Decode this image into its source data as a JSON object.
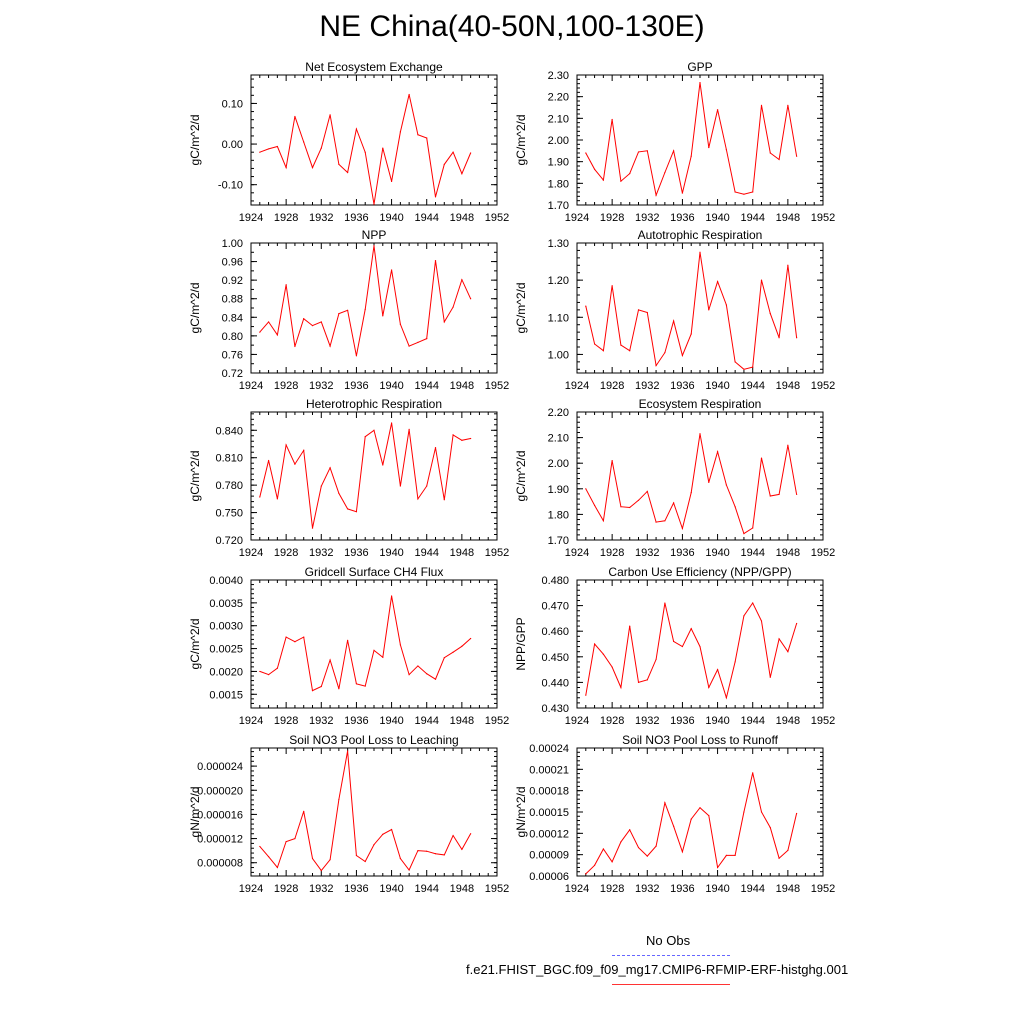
{
  "title": "NE China(40-50N,100-130E)",
  "legend": {
    "obs_label": "No Obs",
    "obs_color": "#6666ff",
    "case_label": "f.e21.FHIST_BGC.f09_f09_mg17.CMIP6-RFMIP-ERF-histghg.001",
    "case_color": "#ff0000"
  },
  "chart_data": [
    {
      "type": "line",
      "title": "Net Ecosystem Exchange",
      "ylabel": "gC/m^2/d",
      "xlim": [
        1924,
        1952
      ],
      "ylim": [
        -0.15,
        0.17
      ],
      "yticks": [
        -0.1,
        0.0,
        0.1
      ],
      "ytick_labels": [
        "-0.10",
        "0.00",
        "0.10"
      ],
      "yminor_step": 0.02,
      "x": [
        1925,
        1926,
        1927,
        1928,
        1929,
        1930,
        1931,
        1932,
        1933,
        1934,
        1935,
        1936,
        1937,
        1938,
        1939,
        1940,
        1941,
        1942,
        1943,
        1944,
        1945,
        1946,
        1947,
        1948,
        1949
      ],
      "values": [
        -0.02,
        -0.012,
        -0.006,
        -0.058,
        0.068,
        0.005,
        -0.058,
        -0.01,
        0.072,
        -0.05,
        -0.07,
        0.037,
        -0.02,
        -0.148,
        -0.01,
        -0.092,
        0.03,
        0.122,
        0.023,
        0.015,
        -0.13,
        -0.05,
        -0.02,
        -0.073,
        -0.022
      ]
    },
    {
      "type": "line",
      "title": "GPP",
      "ylabel": "gC/m^2/d",
      "xlim": [
        1924,
        1952
      ],
      "ylim": [
        1.7,
        2.3
      ],
      "yticks": [
        1.7,
        1.8,
        1.9,
        2.0,
        2.1,
        2.2,
        2.3
      ],
      "ytick_labels": [
        "1.70",
        "1.80",
        "1.90",
        "2.00",
        "2.10",
        "2.20",
        "2.30"
      ],
      "yminor_step": 0.02,
      "x": [
        1925,
        1926,
        1927,
        1928,
        1929,
        1930,
        1931,
        1932,
        1933,
        1934,
        1935,
        1936,
        1937,
        1938,
        1939,
        1940,
        1941,
        1942,
        1943,
        1944,
        1945,
        1946,
        1947,
        1948,
        1949
      ],
      "values": [
        1.94,
        1.865,
        1.815,
        2.095,
        1.81,
        1.845,
        1.945,
        1.95,
        1.745,
        1.85,
        1.95,
        1.755,
        1.925,
        2.265,
        1.965,
        2.14,
        1.955,
        1.76,
        1.75,
        1.76,
        2.16,
        1.94,
        1.91,
        2.16,
        1.925
      ]
    },
    {
      "type": "line",
      "title": "NPP",
      "ylabel": "gC/m^2/d",
      "xlim": [
        1924,
        1952
      ],
      "ylim": [
        0.72,
        1.0
      ],
      "yticks": [
        0.72,
        0.76,
        0.8,
        0.84,
        0.88,
        0.92,
        0.96,
        1.0
      ],
      "ytick_labels": [
        "0.72",
        "0.76",
        "0.80",
        "0.84",
        "0.88",
        "0.92",
        "0.96",
        "1.00"
      ],
      "yminor_step": 0.02,
      "x": [
        1925,
        1926,
        1927,
        1928,
        1929,
        1930,
        1931,
        1932,
        1933,
        1934,
        1935,
        1936,
        1937,
        1938,
        1939,
        1940,
        1941,
        1942,
        1943,
        1944,
        1945,
        1946,
        1947,
        1948,
        1949
      ],
      "values": [
        0.808,
        0.83,
        0.802,
        0.91,
        0.777,
        0.837,
        0.822,
        0.83,
        0.778,
        0.848,
        0.855,
        0.757,
        0.857,
        0.994,
        0.843,
        0.942,
        0.825,
        0.778,
        0.786,
        0.794,
        0.962,
        0.83,
        0.862,
        0.921,
        0.88
      ]
    },
    {
      "type": "line",
      "title": "Autotrophic Respiration",
      "ylabel": "gC/m^2/d",
      "xlim": [
        1924,
        1952
      ],
      "ylim": [
        0.95,
        1.3
      ],
      "yticks": [
        1.0,
        1.1,
        1.2,
        1.3
      ],
      "ytick_labels": [
        "1.00",
        "1.10",
        "1.20",
        "1.30"
      ],
      "yminor_step": 0.02,
      "x": [
        1925,
        1926,
        1927,
        1928,
        1929,
        1930,
        1931,
        1932,
        1933,
        1934,
        1935,
        1936,
        1937,
        1938,
        1939,
        1940,
        1941,
        1942,
        1943,
        1944,
        1945,
        1946,
        1947,
        1948,
        1949
      ],
      "values": [
        1.13,
        1.028,
        1.01,
        1.185,
        1.025,
        1.01,
        1.12,
        1.113,
        0.97,
        1.005,
        1.09,
        0.997,
        1.055,
        1.275,
        1.12,
        1.196,
        1.133,
        0.98,
        0.96,
        0.966,
        1.2,
        1.11,
        1.045,
        1.24,
        1.045
      ]
    },
    {
      "type": "line",
      "title": "Heterotrophic Respiration",
      "ylabel": "gC/m^2/d",
      "xlim": [
        1924,
        1952
      ],
      "ylim": [
        0.72,
        0.86
      ],
      "yticks": [
        0.72,
        0.75,
        0.78,
        0.81,
        0.84
      ],
      "ytick_labels": [
        "0.720",
        "0.750",
        "0.780",
        "0.810",
        "0.840"
      ],
      "yminor_step": 0.006,
      "x": [
        1925,
        1926,
        1927,
        1928,
        1929,
        1930,
        1931,
        1932,
        1933,
        1934,
        1935,
        1936,
        1937,
        1938,
        1939,
        1940,
        1941,
        1942,
        1943,
        1944,
        1945,
        1946,
        1947,
        1948,
        1949
      ],
      "values": [
        0.767,
        0.807,
        0.765,
        0.824,
        0.803,
        0.818,
        0.733,
        0.779,
        0.799,
        0.771,
        0.754,
        0.751,
        0.833,
        0.84,
        0.802,
        0.848,
        0.779,
        0.841,
        0.765,
        0.779,
        0.821,
        0.764,
        0.835,
        0.829,
        0.831
      ]
    },
    {
      "type": "line",
      "title": "Ecosystem Respiration",
      "ylabel": "gC/m^2/d",
      "xlim": [
        1924,
        1952
      ],
      "ylim": [
        1.7,
        2.2
      ],
      "yticks": [
        1.7,
        1.8,
        1.9,
        2.0,
        2.1,
        2.2
      ],
      "ytick_labels": [
        "1.70",
        "1.80",
        "1.90",
        "2.00",
        "2.10",
        "2.20"
      ],
      "yminor_step": 0.02,
      "x": [
        1925,
        1926,
        1927,
        1928,
        1929,
        1930,
        1931,
        1932,
        1933,
        1934,
        1935,
        1936,
        1937,
        1938,
        1939,
        1940,
        1941,
        1942,
        1943,
        1944,
        1945,
        1946,
        1947,
        1948,
        1949
      ],
      "values": [
        1.9,
        1.835,
        1.775,
        2.01,
        1.83,
        1.827,
        1.855,
        1.89,
        1.77,
        1.775,
        1.845,
        1.745,
        1.885,
        2.115,
        1.925,
        2.045,
        1.915,
        1.83,
        1.725,
        1.747,
        2.02,
        1.872,
        1.878,
        2.07,
        1.878
      ]
    },
    {
      "type": "line",
      "title": "Gridcell Surface CH4 Flux",
      "ylabel": "gC/m^2/d",
      "xlim": [
        1924,
        1952
      ],
      "ylim": [
        0.0012,
        0.004
      ],
      "yticks": [
        0.0015,
        0.002,
        0.0025,
        0.003,
        0.0035,
        0.004
      ],
      "ytick_labels": [
        "0.0015",
        "0.0020",
        "0.0025",
        "0.0030",
        "0.0035",
        "0.0040"
      ],
      "yminor_step": 0.0001,
      "x": [
        1925,
        1926,
        1927,
        1928,
        1929,
        1930,
        1931,
        1932,
        1933,
        1934,
        1935,
        1936,
        1937,
        1938,
        1939,
        1940,
        1941,
        1942,
        1943,
        1944,
        1945,
        1946,
        1947,
        1948,
        1949
      ],
      "values": [
        0.002,
        0.00193,
        0.00207,
        0.00275,
        0.00265,
        0.00275,
        0.00158,
        0.00167,
        0.00225,
        0.00162,
        0.00268,
        0.00173,
        0.00168,
        0.00246,
        0.00231,
        0.00365,
        0.00258,
        0.00193,
        0.00212,
        0.00195,
        0.00183,
        0.0023,
        0.00242,
        0.00255,
        0.00272
      ]
    },
    {
      "type": "line",
      "title": "Carbon Use Efficiency (NPP/GPP)",
      "ylabel": "NPP/GPP",
      "xlim": [
        1924,
        1952
      ],
      "ylim": [
        0.43,
        0.48
      ],
      "yticks": [
        0.43,
        0.44,
        0.45,
        0.46,
        0.47,
        0.48
      ],
      "ytick_labels": [
        "0.430",
        "0.440",
        "0.450",
        "0.460",
        "0.470",
        "0.480"
      ],
      "yminor_step": 0.002,
      "x": [
        1925,
        1926,
        1927,
        1928,
        1929,
        1930,
        1931,
        1932,
        1933,
        1934,
        1935,
        1936,
        1937,
        1938,
        1939,
        1940,
        1941,
        1942,
        1943,
        1944,
        1945,
        1946,
        1947,
        1948,
        1949
      ],
      "values": [
        0.435,
        0.455,
        0.451,
        0.446,
        0.438,
        0.462,
        0.44,
        0.441,
        0.449,
        0.471,
        0.456,
        0.454,
        0.461,
        0.454,
        0.438,
        0.445,
        0.434,
        0.448,
        0.466,
        0.471,
        0.464,
        0.442,
        0.457,
        0.452,
        0.463
      ]
    },
    {
      "type": "line",
      "title": "Soil NO3 Pool Loss to Leaching",
      "ylabel": "gN/m^2/d",
      "xlim": [
        1924,
        1952
      ],
      "ylim": [
        5.8e-06,
        2.7e-05
      ],
      "yticks": [
        8e-06,
        1.2e-05,
        1.6e-05,
        2e-05,
        2.4e-05
      ],
      "ytick_labels": [
        "0.000008",
        "0.000012",
        "0.000016",
        "0.000020",
        "0.000024"
      ],
      "yminor_step": 8e-07,
      "x": [
        1925,
        1926,
        1927,
        1928,
        1929,
        1930,
        1931,
        1932,
        1933,
        1934,
        1935,
        1936,
        1937,
        1938,
        1939,
        1940,
        1941,
        1942,
        1943,
        1944,
        1945,
        1946,
        1947,
        1948,
        1949
      ],
      "values": [
        1.07e-05,
        9e-06,
        7.2e-06,
        1.15e-05,
        1.2e-05,
        1.65e-05,
        8.7e-06,
        6.7e-06,
        8.5e-06,
        1.85e-05,
        2.65e-05,
        9.2e-06,
        8.2e-06,
        1.1e-05,
        1.27e-05,
        1.35e-05,
        8.7e-06,
        6.8e-06,
        1e-05,
        9.9e-06,
        9.5e-06,
        9.3e-06,
        1.25e-05,
        1.02e-05,
        1.28e-05
      ]
    },
    {
      "type": "line",
      "title": "Soil NO3 Pool Loss to Runoff",
      "ylabel": "gN/m^2/d",
      "xlim": [
        1924,
        1952
      ],
      "ylim": [
        6e-05,
        0.00024
      ],
      "yticks": [
        6e-05,
        9e-05,
        0.00012,
        0.00015,
        0.00018,
        0.00021,
        0.00024
      ],
      "ytick_labels": [
        "0.00006",
        "0.00009",
        "0.00012",
        "0.00015",
        "0.00018",
        "0.00021",
        "0.00024"
      ],
      "yminor_step": 6e-06,
      "x": [
        1925,
        1926,
        1927,
        1928,
        1929,
        1930,
        1931,
        1932,
        1933,
        1934,
        1935,
        1936,
        1937,
        1938,
        1939,
        1940,
        1941,
        1942,
        1943,
        1944,
        1945,
        1946,
        1947,
        1948,
        1949
      ],
      "values": [
        6.3e-05,
        7.5e-05,
        9.8e-05,
        8e-05,
        0.000108,
        0.000125,
        0.0001,
        8.8e-05,
        0.000102,
        0.000163,
        0.00013,
        9.4e-05,
        0.00014,
        0.000156,
        0.000145,
        7.2e-05,
        8.9e-05,
        8.9e-05,
        0.00015,
        0.000205,
        0.00015,
        0.000128,
        8.5e-05,
        9.6e-05,
        0.000148
      ]
    }
  ]
}
